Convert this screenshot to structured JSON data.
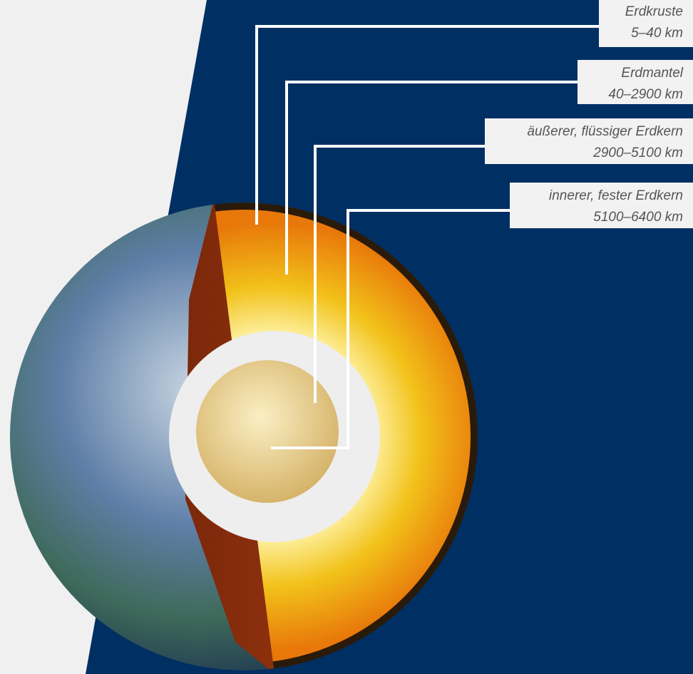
{
  "layers": [
    {
      "name": "Erdkruste",
      "depth": "5–40 km"
    },
    {
      "name": "Erdmantel",
      "depth": "40–2900 km"
    },
    {
      "name": "äußerer, flüssiger Erdkern",
      "depth": "2900–5100 km"
    },
    {
      "name": "innerer, fester Erdkern",
      "depth": "5100–6400 km"
    }
  ]
}
